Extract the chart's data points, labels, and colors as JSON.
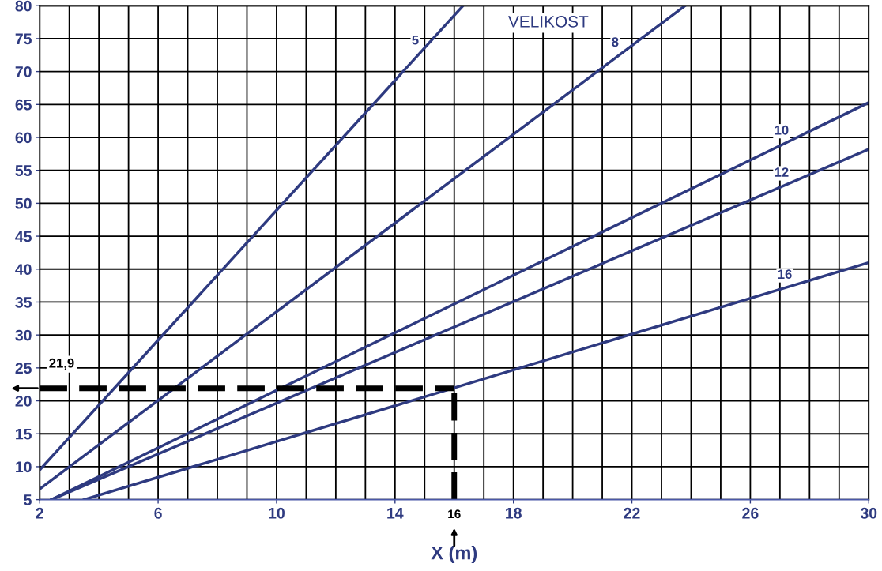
{
  "chart_data": {
    "type": "line",
    "xlabel": "X (m)",
    "annotations": [
      "VELIKOST"
    ],
    "xlim": [
      2,
      30
    ],
    "ylim": [
      5,
      80
    ],
    "xticks": [
      2,
      {
        "value": 3,
        "label": null
      },
      {
        "value": 4,
        "label": null
      },
      {
        "value": 5,
        "label": null
      },
      6,
      {
        "value": 7,
        "label": null
      },
      {
        "value": 8,
        "label": null
      },
      {
        "value": 9,
        "label": null
      },
      10,
      {
        "value": 11,
        "label": null
      },
      {
        "value": 12,
        "label": null
      },
      {
        "value": 13,
        "label": null
      },
      14,
      {
        "value": 15,
        "label": null
      },
      {
        "value": 16,
        "label": null
      },
      {
        "value": 17,
        "label": null
      },
      18,
      {
        "value": 19,
        "label": null
      },
      {
        "value": 20,
        "label": null
      },
      {
        "value": 21,
        "label": null
      },
      22,
      {
        "value": 23,
        "label": null
      },
      {
        "value": 24,
        "label": null
      },
      {
        "value": 25,
        "label": null
      },
      26,
      {
        "value": 27,
        "label": null
      },
      {
        "value": 28,
        "label": null
      },
      {
        "value": 29,
        "label": null
      },
      30
    ],
    "yticks": [
      5,
      10,
      15,
      20,
      25,
      30,
      35,
      40,
      45,
      50,
      55,
      60,
      65,
      70,
      75,
      80
    ],
    "grid": true,
    "legend": false,
    "marker": "none",
    "line_style": "solid",
    "series": [
      {
        "name": "5",
        "color": "#2e3a80",
        "x": [
          2,
          16.3
        ],
        "values": [
          9.5,
          80
        ]
      },
      {
        "name": "8",
        "color": "#2e3a80",
        "x": [
          2,
          23.8
        ],
        "values": [
          6.6,
          80
        ]
      },
      {
        "name": "10",
        "color": "#2e3a80",
        "x": [
          2.4,
          30
        ],
        "values": [
          5,
          65.3
        ]
      },
      {
        "name": "12",
        "color": "#2e3a80",
        "x": [
          2.4,
          30
        ],
        "values": [
          5,
          58.2
        ]
      },
      {
        "name": "16",
        "color": "#2e3a80",
        "x": [
          3.5,
          30
        ],
        "values": [
          5,
          41
        ]
      }
    ],
    "ref_lines": [
      {
        "axis": "y",
        "value": 21.9,
        "label": "21,9",
        "color": "#000000",
        "line_style": "dashed"
      },
      {
        "axis": "x",
        "value": 16,
        "label": "16",
        "color": "#000000",
        "line_style": "dashed"
      }
    ]
  }
}
